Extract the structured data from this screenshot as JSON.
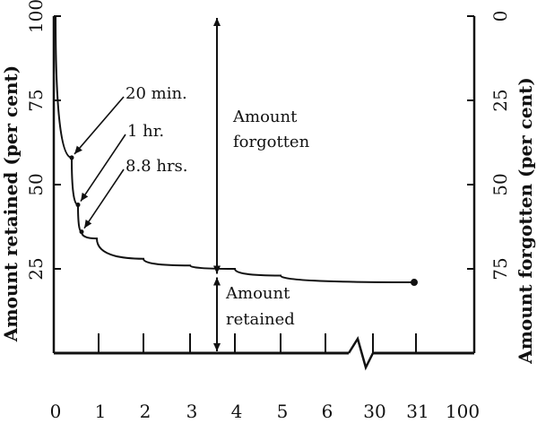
{
  "chart_data": {
    "type": "line",
    "title": "",
    "xlabel": "",
    "ylabel": "Amount retained (per cent)",
    "y2label": "Amount forgotten (per cent)",
    "ylim": [
      0,
      100
    ],
    "y2lim": [
      100,
      0
    ],
    "yticks": [
      "25",
      "50",
      "75",
      "100"
    ],
    "y2ticks": [
      "0",
      "25",
      "50",
      "75"
    ],
    "xticks": [
      "0",
      "1",
      "2",
      "3",
      "4",
      "5",
      "6",
      "30",
      "31",
      "100"
    ],
    "x_axis_break": "between 6 and 30",
    "grid": false,
    "legend": "none",
    "series": [
      {
        "points": [
          {
            "x": 0,
            "y": 100
          },
          {
            "x": 0.33,
            "y": 58
          },
          {
            "x": 1,
            "y": 44
          },
          {
            "x": 8.8,
            "y": 36
          },
          {
            "x": 24,
            "y": 34
          },
          {
            "x": 48,
            "y": 28
          },
          {
            "x": 72,
            "y": 26
          },
          {
            "x": 96,
            "y": 25
          },
          {
            "x": 144,
            "y": 23
          },
          {
            "x": 744,
            "y": 21
          }
        ],
        "end_marker_x": 744
      }
    ],
    "point_labels": [
      "20 min.",
      "1 hr.",
      "8.8 hrs."
    ],
    "annotations": {
      "forgotten": [
        "Amount",
        "forgotten"
      ],
      "retained": [
        "Amount",
        "retained"
      ]
    }
  }
}
